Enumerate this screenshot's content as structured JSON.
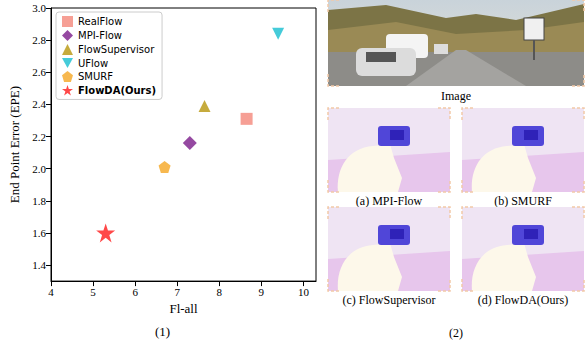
{
  "chart_data": {
    "type": "scatter",
    "xlabel": "Fl-all",
    "ylabel": "End Point Error (EPE)",
    "series": [
      {
        "name": "RealFlow",
        "color": "#f4877a",
        "marker": "square",
        "x": [
          8.65
        ],
        "values": [
          2.31
        ]
      },
      {
        "name": "MPI-Flow",
        "color": "#7b1b8a",
        "marker": "diamond",
        "x": [
          7.3
        ],
        "values": [
          2.16
        ]
      },
      {
        "name": "FlowSupervisor",
        "color": "#b8960c",
        "marker": "triangle",
        "x": [
          7.65
        ],
        "values": [
          2.39
        ]
      },
      {
        "name": "UFlow",
        "color": "#17becf",
        "marker": "triangle_down",
        "x": [
          9.4
        ],
        "values": [
          2.84
        ]
      },
      {
        "name": "SMURF",
        "color": "#f5a623",
        "marker": "pentagon",
        "x": [
          6.7
        ],
        "values": [
          2.01
        ]
      },
      {
        "name": "FlowDA(Ours)",
        "color": "#ff1a1a",
        "marker": "star",
        "x": [
          5.3
        ],
        "values": [
          1.6
        ]
      }
    ],
    "xlim": [
      4,
      10.3
    ],
    "xticks": [
      4,
      5,
      6,
      7,
      8,
      9,
      10
    ],
    "ylim": [
      1.3,
      3.0
    ],
    "yticks": [
      1.4,
      1.6,
      1.8,
      {
        "value": 2,
        "label": "2.0"
      },
      2.2,
      2.4,
      2.6,
      2.8,
      {
        "value": 3,
        "label": "3.0"
      }
    ],
    "grid": false,
    "legend": "upper left"
  },
  "figure": {
    "captions": [
      "(1)",
      "(2)"
    ],
    "image_label": "Image",
    "flow_panels": [
      "(a) MPI-Flow",
      "(b) SMURF",
      "(c) FlowSupervisor",
      "(d) FlowDA(Ours)"
    ]
  }
}
